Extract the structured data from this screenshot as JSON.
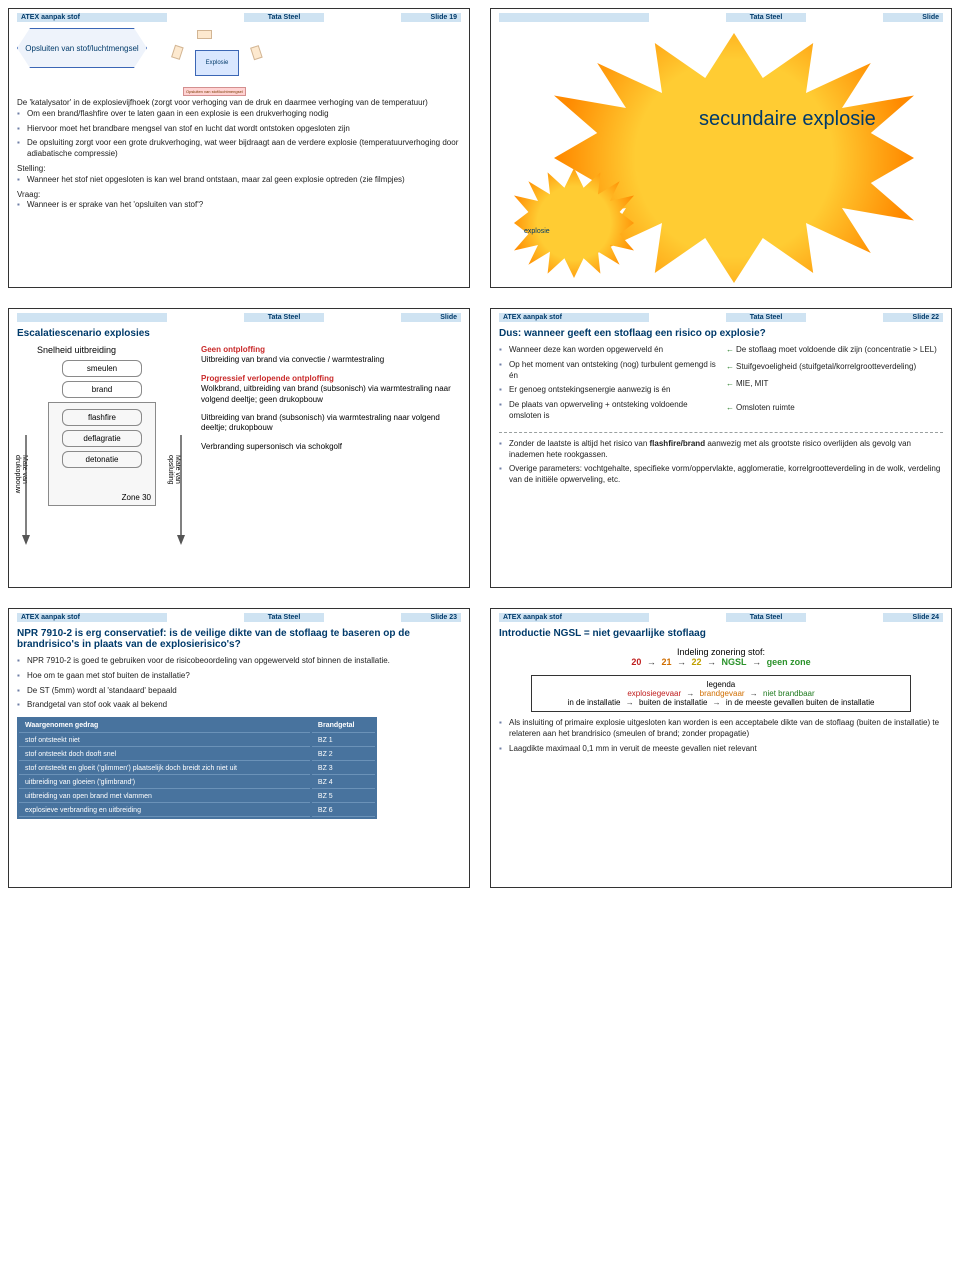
{
  "slides": {
    "s19": {
      "hdr_title": "ATEX aanpak stof",
      "hdr_company": "Tata Steel",
      "hdr_slide": "Slide 19",
      "hex": "Opsluiten van stof/luchtmengsel",
      "pentagon_center": "Explosie",
      "p1": "De 'katalysator' in de explosievijfhoek (zorgt voor verhoging van de druk en daarmee verhoging van de temperatuur)",
      "b1": "Om een brand/flashfire over te laten gaan in een explosie is een drukverhoging nodig",
      "b2": "Hiervoor moet het brandbare mengsel van stof en lucht dat wordt ontstoken opgesloten zijn",
      "b3": "De opsluiting zorgt voor een grote drukverhoging, wat weer bijdraagt aan de verdere explosie (temperatuurverhoging door adiabatische compressie)",
      "stelling": "Stelling:",
      "s_b1": "Wanneer het stof niet opgesloten is kan wel brand ontstaan, maar zal geen explosie optreden (zie filmpjes)",
      "vraag": "Vraag:",
      "v_b1": "Wanneer is er sprake van het 'opsluiten van stof'?"
    },
    "s20": {
      "hdr_title": "",
      "hdr_company": "Tata Steel",
      "hdr_slide": "Slide",
      "big": "secundaire explosie",
      "small": "explosie"
    },
    "s21": {
      "hdr_title": "",
      "hdr_company": "Tata Steel",
      "hdr_slide": "Slide",
      "title": "Escalatiescenario explosies",
      "sub": "Snelheid uitbreiding",
      "stages": [
        "smeulen",
        "brand",
        "flashfire",
        "deflagratie",
        "detonatie"
      ],
      "zone": "Zone 30",
      "vleft": "Mate van drukopbouw",
      "vright": "Mate van opsluiting",
      "r1h": "Geen ontploffing",
      "r1": "Uitbreiding van brand via convectie / warmtestraling",
      "r2h": "Progressief verlopende ontploffing",
      "r2": "Wolkbrand, uitbreiding van brand (subsonisch) via warmtestraling naar volgend deeltje; geen drukopbouw",
      "r3": "Uitbreiding van brand (subsonisch) via warmtestraling naar volgend deeltje; drukopbouw",
      "r4": "Verbranding supersonisch via schokgolf"
    },
    "s22": {
      "hdr_title": "ATEX aanpak stof",
      "hdr_company": "Tata Steel",
      "hdr_slide": "Slide 22",
      "title": "Dus: wanneer geeft een stoflaag een risico op explosie?",
      "l1": "Wanneer deze kan worden opgewerveld én",
      "l2": "Op het moment van ontsteking (nog) turbulent gemengd is én",
      "l3": "Er genoeg ontstekingsenergie aanwezig is én",
      "l4": "De plaats van opwerveling + ontsteking voldoende omsloten is",
      "r1": "De stoflaag moet voldoende dik zijn (concentratie > LEL)",
      "r2": "Stuifgevoeligheid (stuifgetal/korrelgrootteverdeling)",
      "r3": "MIE, MIT",
      "r4": "Omsloten ruimte",
      "bottom1": "Zonder de laatste is altijd het risico van flashfire/brand aanwezig met als grootste risico overlijden als gevolg van inademen hete rookgassen.",
      "bottom2": "Overige parameters: vochtgehalte, specifieke vorm/oppervlakte, agglomeratie, korrelgrootteverdeling in de wolk, verdeling van de initiële opwerveling, etc."
    },
    "s23": {
      "hdr_title": "ATEX aanpak stof",
      "hdr_company": "Tata Steel",
      "hdr_slide": "Slide 23",
      "title": "NPR 7910-2 is erg conservatief: is de veilige dikte van de stoflaag  te baseren op de brandrisico's in plaats van de explosierisico's?",
      "b1": "NPR 7910-2 is goed te gebruiken voor de risicobeoordeling van opgewerveld stof binnen de installatie.",
      "b2": "Hoe om te gaan met stof buiten de installatie?",
      "b3": "De ST (5mm) wordt al 'standaard' bepaald",
      "b4": "Brandgetal van stof ook vaak al bekend",
      "th1": "Waargenomen gedrag",
      "th2": "Brandgetal",
      "rows": [
        [
          "stof ontsteekt niet",
          "BZ 1"
        ],
        [
          "stof ontsteekt doch dooft snel",
          "BZ 2"
        ],
        [
          "stof ontsteekt en gloeit ('glimmen') plaatselijk doch breidt zich niet uit",
          "BZ 3"
        ],
        [
          "uitbreiding van gloeien ('glimbrand')",
          "BZ 4"
        ],
        [
          "uitbreiding van open brand met vlammen",
          "BZ 5"
        ],
        [
          "explosieve verbranding en uitbreiding",
          "BZ 6"
        ]
      ]
    },
    "s24": {
      "hdr_title": "ATEX aanpak stof",
      "hdr_company": "Tata Steel",
      "hdr_slide": "Slide 24",
      "title": "Introductie NGSL = niet gevaarlijke stoflaag",
      "chain_label": "Indeling zonering stof:",
      "c20": "20",
      "c21": "21",
      "c22": "22",
      "cngsl": "NGSL",
      "cnone": "geen zone",
      "leg_title": "legenda",
      "leg_l1a": "explosiegevaar",
      "leg_l1b": "brandgevaar",
      "leg_l1c": "niet brandbaar",
      "leg_l2a": "in de installatie",
      "leg_l2b": "buiten de installatie",
      "leg_l2c": "in de meeste gevallen buiten de installatie",
      "b1": "Als insluiting of primaire explosie uitgesloten kan worden is een acceptabele dikte van de stoflaag (buiten de installatie) te relateren aan het brandrisico (smeulen of brand; zonder propagatie)",
      "b2": "Laagdikte maximaal 0,1 mm in veruit de meeste gevallen niet relevant"
    }
  },
  "colors": {
    "header_bg": "#cfe3f2",
    "header_text": "#003a6a",
    "bullet": "#6d7da5",
    "burst_inner": "#ffcc33",
    "burst_outer": "#ff8a00",
    "table_bg": "#48739e",
    "red": "#c02020",
    "orange": "#d06e00",
    "green": "#2b922b"
  }
}
